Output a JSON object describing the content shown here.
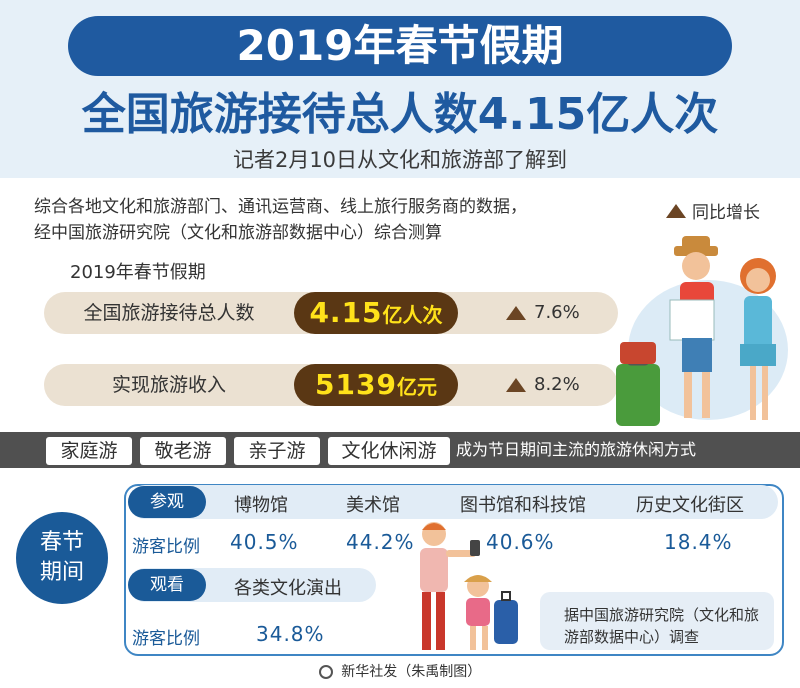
{
  "header": {
    "title": "2019年春节假期",
    "headline": "全国旅游接待总人数4.15亿人次",
    "subhead": "记者2月10日从文化和旅游部了解到"
  },
  "intro": {
    "line1": "综合各地文化和旅游部门、通讯运营商、线上旅行服务商的数据，",
    "line2": "经中国旅游研究院（文化和旅游部数据中心）综合测算"
  },
  "legend": {
    "label": "同比增长"
  },
  "section_title": "2019年春节假期",
  "stats": [
    {
      "label": "全国旅游接待总人数",
      "value_num": "4.15",
      "value_unit": "亿人次",
      "change": "7.6%"
    },
    {
      "label": "实现旅游收入",
      "value_num": "5139",
      "value_unit": "亿元",
      "change": "8.2%"
    }
  ],
  "band": {
    "tags": [
      "家庭游",
      "敬老游",
      "亲子游",
      "文化休闲游"
    ],
    "text": "成为节日期间主流的旅游休闲方式"
  },
  "survey": {
    "period": [
      "春节",
      "期间"
    ],
    "visit": {
      "label": "参观",
      "ratio_label": "游客比例",
      "categories": [
        "博物馆",
        "美术馆",
        "图书馆和科技馆",
        "历史文化街区"
      ],
      "values": [
        "40.5%",
        "44.2%",
        "40.6%",
        "18.4%"
      ]
    },
    "watch": {
      "label": "观看",
      "ratio_label": "游客比例",
      "categories": [
        "各类文化演出"
      ],
      "values": [
        "34.8%"
      ]
    },
    "note": "据中国旅游研究院（文化和旅游部数据中心）调查"
  },
  "footer": {
    "credit": "新华社发（朱禹制图）"
  },
  "colors": {
    "primary_blue": "#1f5aa0",
    "brown": "#5a3714",
    "value_yellow": "#ffe21a"
  }
}
